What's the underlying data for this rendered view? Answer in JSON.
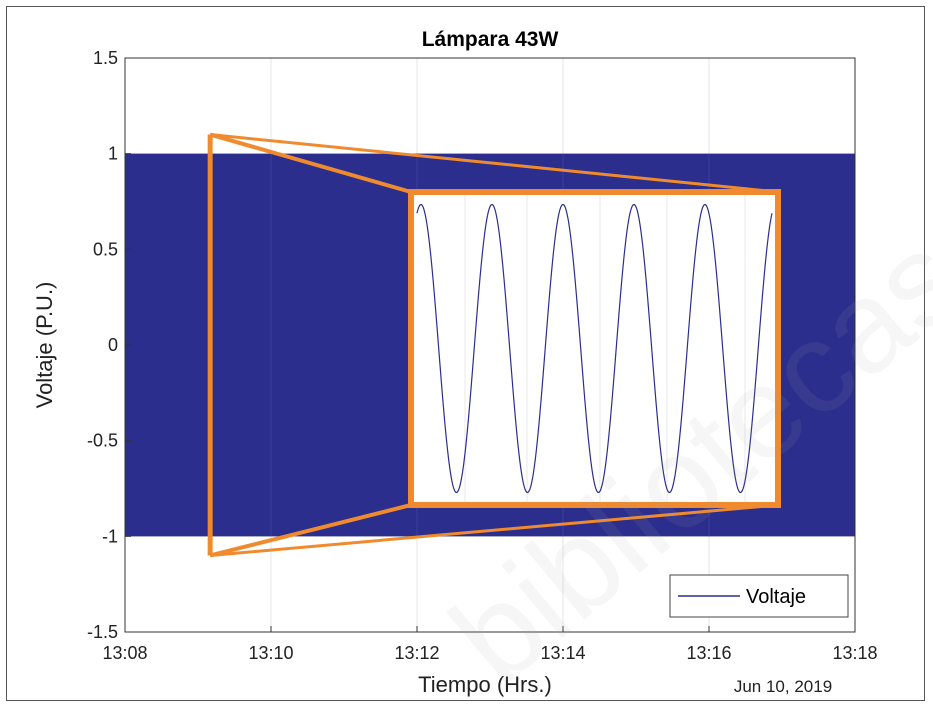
{
  "chart_data": {
    "type": "line",
    "title": "Lámpara 43W",
    "xlabel": "Tiempo (Hrs.)",
    "ylabel": "Voltaje (P.U.)",
    "x_tick_labels": [
      "13:08",
      "13:10",
      "13:12",
      "13:14",
      "13:16",
      "13:18"
    ],
    "x_range": [
      "13:08",
      "13:18"
    ],
    "y_ticks": [
      -1.5,
      -1,
      -0.5,
      0,
      0.5,
      1,
      1.5
    ],
    "y_tick_labels": [
      "-1.5",
      "-1",
      "-0.5",
      "0",
      "0.5",
      "1",
      "1.5"
    ],
    "ylim": [
      -1.5,
      1.5
    ],
    "date_label": "Jun 10, 2019",
    "grid": true,
    "legend": {
      "position": "bottom-right",
      "entries": [
        "Voltaje"
      ]
    },
    "series": [
      {
        "name": "Voltaje",
        "color": "#2b2e8c",
        "envelope": {
          "x_start": "13:08",
          "x_end": "13:18",
          "min": -1,
          "max": 1
        }
      }
    ],
    "inset": {
      "description_visible": false,
      "color_border": "#f08a2e",
      "source_region": {
        "x": "13:09:10",
        "y": [
          -1.1,
          1.1
        ]
      },
      "waveform": {
        "cycles": 5,
        "amplitude": 0.75
      }
    }
  },
  "watermark_text": "bibliotecas"
}
